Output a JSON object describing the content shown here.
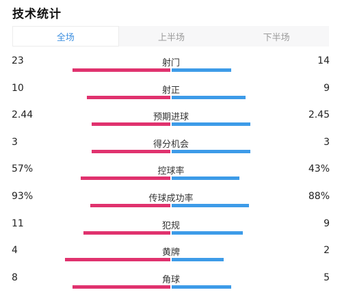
{
  "header": {
    "title": "技术统计"
  },
  "tabs": [
    {
      "label": "全场",
      "active": true
    },
    {
      "label": "上半场",
      "active": false
    },
    {
      "label": "下半场",
      "active": false
    }
  ],
  "colors": {
    "home": "#e0326e",
    "away": "#3d9be8",
    "active_tab": "#3d8fe0"
  },
  "stats": [
    {
      "name": "射门",
      "home": "23",
      "away": "14",
      "home_ratio": 0.62,
      "away_ratio": 0.38
    },
    {
      "name": "射正",
      "home": "10",
      "away": "9",
      "home_ratio": 0.53,
      "away_ratio": 0.47
    },
    {
      "name": "预期进球",
      "home": "2.44",
      "away": "2.45",
      "home_ratio": 0.5,
      "away_ratio": 0.5
    },
    {
      "name": "得分机会",
      "home": "3",
      "away": "3",
      "home_ratio": 0.5,
      "away_ratio": 0.5
    },
    {
      "name": "控球率",
      "home": "57%",
      "away": "43%",
      "home_ratio": 0.57,
      "away_ratio": 0.43
    },
    {
      "name": "传球成功率",
      "home": "93%",
      "away": "88%",
      "home_ratio": 0.51,
      "away_ratio": 0.49
    },
    {
      "name": "犯规",
      "home": "11",
      "away": "9",
      "home_ratio": 0.55,
      "away_ratio": 0.45
    },
    {
      "name": "黄牌",
      "home": "4",
      "away": "2",
      "home_ratio": 0.67,
      "away_ratio": 0.33
    },
    {
      "name": "角球",
      "home": "8",
      "away": "5",
      "home_ratio": 0.62,
      "away_ratio": 0.38
    }
  ]
}
